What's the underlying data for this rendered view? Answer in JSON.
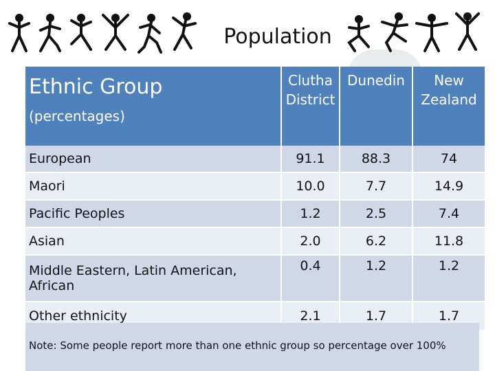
{
  "title": "Population",
  "table": {
    "header": {
      "group_label": "Ethnic Group",
      "group_sublabel": "(percentages)",
      "columns": [
        "Clutha District",
        "Dunedin",
        "New Zealand"
      ]
    },
    "rows": [
      {
        "label": "European",
        "values": [
          "91.1",
          "88.3",
          "74"
        ]
      },
      {
        "label": "Maori",
        "values": [
          "10.0",
          "7.7",
          "14.9"
        ]
      },
      {
        "label": "Pacific Peoples",
        "values": [
          "1.2",
          "2.5",
          "7.4"
        ]
      },
      {
        "label": "Asian",
        "values": [
          "2.0",
          "6.2",
          "11.8"
        ]
      },
      {
        "label": "Middle Eastern, Latin American, African",
        "values": [
          "0.4",
          "1.2",
          "1.2"
        ]
      },
      {
        "label": "Other ethnicity",
        "values": [
          "2.1",
          "1.7",
          "1.7"
        ]
      }
    ]
  },
  "note": "Note: Some people report more than one ethnic group so percentage over 100%",
  "colors": {
    "header_bg": "#4f81bd",
    "row_odd": "#d0d8e8",
    "row_even": "#e9edf4"
  }
}
